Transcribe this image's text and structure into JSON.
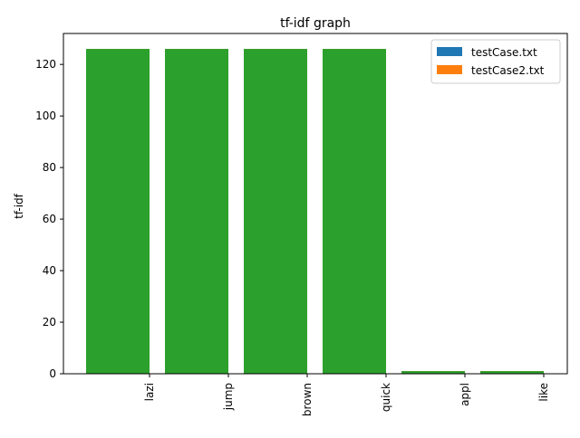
{
  "chart_data": {
    "type": "bar",
    "title": "tf-idf graph",
    "xlabel": "",
    "ylabel": "tf-idf",
    "categories": [
      "lazi",
      "jump",
      "brown",
      "quick",
      "appl",
      "like"
    ],
    "series": [
      {
        "name": "testCase.txt",
        "color": "#1f77b4",
        "values": [
          126,
          126,
          126,
          126,
          1,
          1
        ]
      },
      {
        "name": "testCase2.txt",
        "color": "#ff7f0e",
        "values": [
          126,
          126,
          126,
          126,
          1,
          1
        ]
      },
      {
        "name": "",
        "color": "#2ca02c",
        "values": [
          126,
          126,
          126,
          126,
          1,
          1
        ]
      }
    ],
    "ylim": [
      0,
      132
    ],
    "yticks": [
      0,
      20,
      40,
      60,
      80,
      100,
      120
    ],
    "grid": false,
    "legend_position": "top-right"
  }
}
